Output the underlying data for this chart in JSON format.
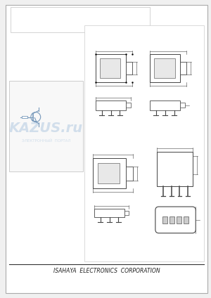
{
  "bg_color": "#f0f0f0",
  "page_bg": "#ffffff",
  "border_color": "#aaaaaa",
  "line_color": "#555555",
  "footer_text": "ISAHAYA  ELECTRONICS  CORPORATION",
  "footer_fontsize": 5.5,
  "diagram_border_color": "#cccccc",
  "watermark_color": "#c8d8e8",
  "watermark_text": "KAZUS.ru",
  "watermark_sub": "ЭЛЕКТРОННЫЙ  ПОРТАЛ"
}
